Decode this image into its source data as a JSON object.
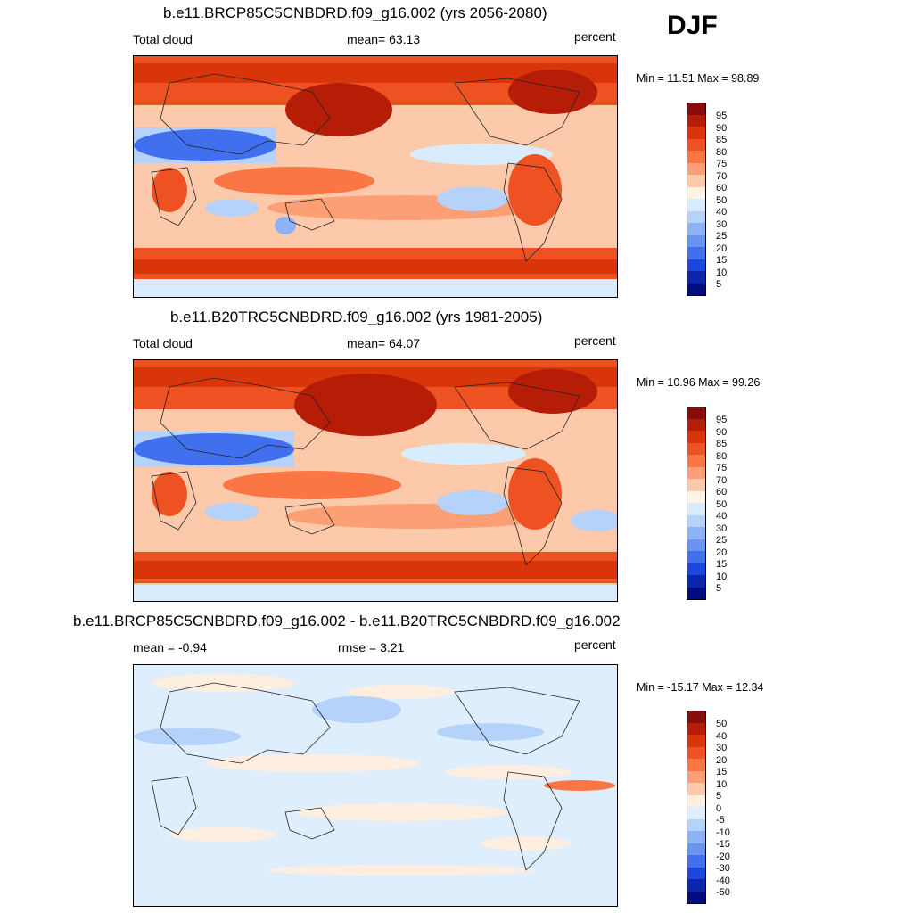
{
  "season": "DJF",
  "panels": [
    {
      "title": "b.e11.BRCP85C5CNBDRD.f09_g16.002 (yrs 2056-2080)",
      "left_label": "Total cloud",
      "center_label": "mean=  63.13",
      "right_label": "percent",
      "minmax": "Min =  11.51 Max =  98.89"
    },
    {
      "title": "b.e11.B20TRC5CNBDRD.f09_g16.002 (yrs 1981-2005)",
      "left_label": "Total cloud",
      "center_label": "mean=  64.07",
      "right_label": "percent",
      "minmax": "Min =  10.96 Max =  99.26"
    },
    {
      "title": "b.e11.BRCP85C5CNBDRD.f09_g16.002 - b.e11.B20TRC5CNBDRD.f09_g16.002",
      "left_label": "mean =  -0.94",
      "center_label": "rmse =   3.21",
      "right_label": "percent",
      "minmax": "Min = -15.17 Max =  12.34"
    }
  ],
  "colorbars": {
    "absolute": {
      "labels": [
        "95",
        "90",
        "85",
        "80",
        "75",
        "70",
        "60",
        "50",
        "40",
        "30",
        "25",
        "20",
        "15",
        "10",
        "5"
      ],
      "colors": [
        "#8a0b0b",
        "#b51d07",
        "#d8350a",
        "#ef5222",
        "#fa7645",
        "#fc9f75",
        "#fdc9ab",
        "#fdf3e5",
        "#d9ecfe",
        "#b5d2fb",
        "#8db2f6",
        "#6a93f2",
        "#4070ee",
        "#1a48dd",
        "#0a26ae",
        "#000c80"
      ]
    },
    "difference": {
      "labels": [
        "50",
        "40",
        "30",
        "20",
        "15",
        "10",
        "5",
        "0",
        "-5",
        "-10",
        "-15",
        "-20",
        "-30",
        "-40",
        "-50"
      ],
      "colors": [
        "#8a0b0b",
        "#b51d07",
        "#d8350a",
        "#ef5222",
        "#fa7645",
        "#fc9f75",
        "#fdc9ab",
        "#fdeee0",
        "#dfeefd",
        "#b5d2fb",
        "#8db2f6",
        "#6a93f2",
        "#4070ee",
        "#1a48dd",
        "#0a26ae",
        "#000c80"
      ]
    }
  }
}
